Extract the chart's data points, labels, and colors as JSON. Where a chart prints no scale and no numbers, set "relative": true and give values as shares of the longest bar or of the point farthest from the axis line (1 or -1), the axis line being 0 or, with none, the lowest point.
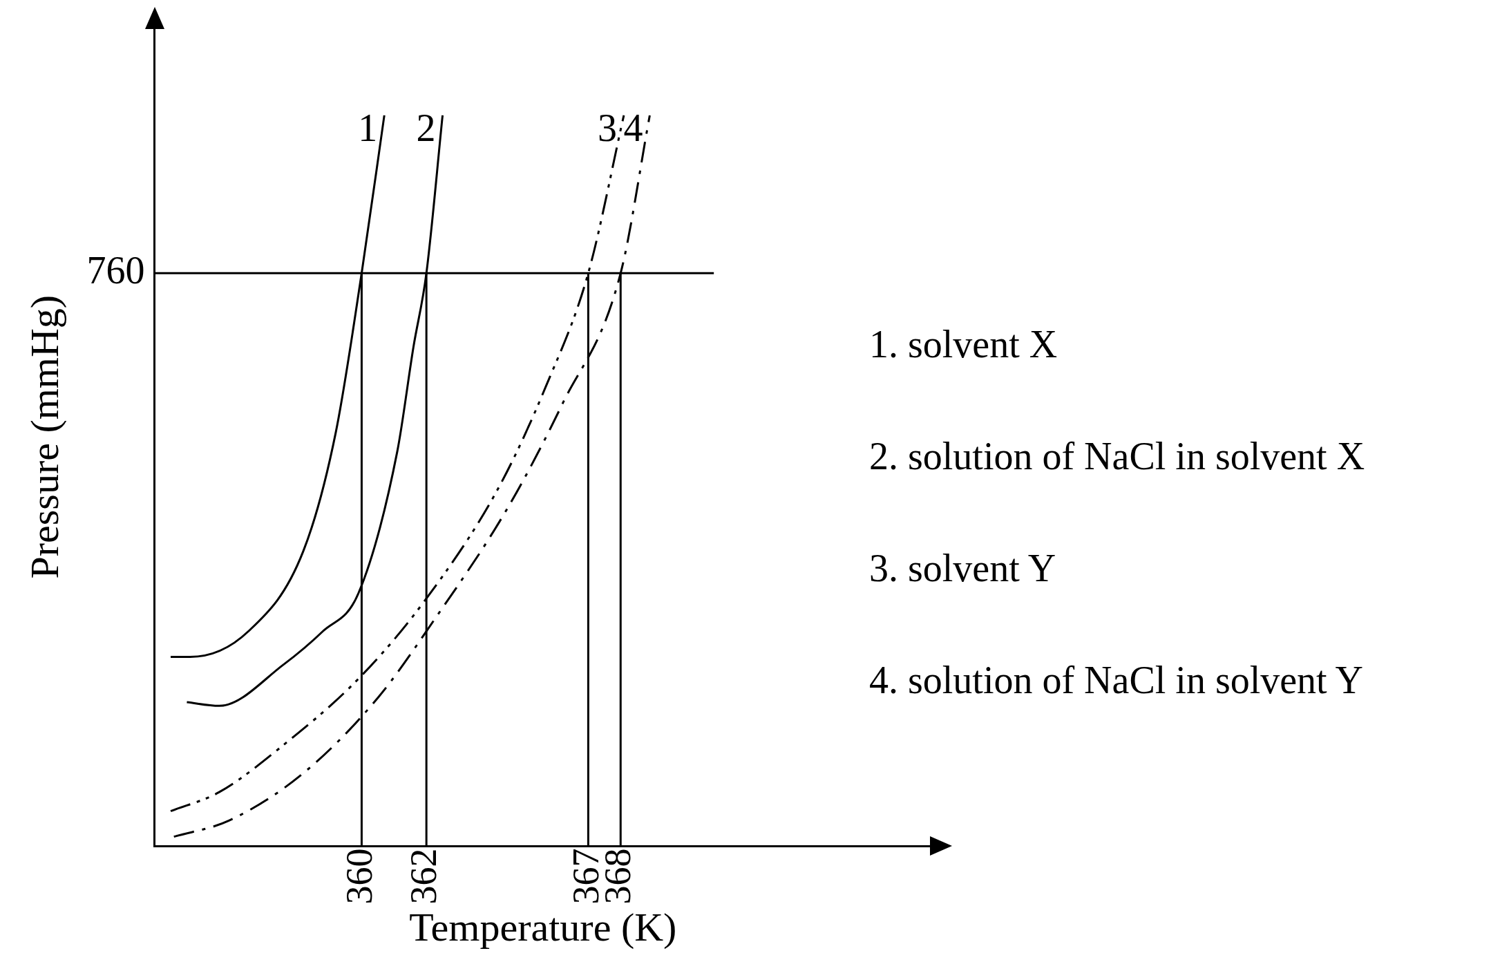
{
  "chart_data": {
    "type": "line",
    "relative": true,
    "xlabel": "Temperature (K)",
    "ylabel": "Pressure (mmHg)",
    "xlim": [
      353.6,
      377.6
    ],
    "xticks": [
      360,
      362,
      367,
      368
    ],
    "grid": false,
    "legend": false,
    "marker": "none",
    "series": [
      {
        "name": "1",
        "color": "#000000",
        "line_style": "solid",
        "x": [
          354.1,
          354.7,
          356.5,
          358.2,
          359.2,
          360,
          360.7
        ],
        "values": [
          0.259,
          0.259,
          0.294,
          0.404,
          0.566,
          0.784,
          1.0
        ]
      },
      {
        "name": "2",
        "color": "#000000",
        "line_style": "solid",
        "x": [
          354.6,
          355.6,
          357.6,
          358.8,
          359.9,
          361.1,
          361.6,
          362,
          362.5
        ],
        "values": [
          0.197,
          0.192,
          0.249,
          0.294,
          0.346,
          0.54,
          0.683,
          0.784,
          1.0
        ]
      },
      {
        "name": "3",
        "color": "#000000",
        "line_style": "dotted",
        "x": [
          354.1,
          355.6,
          357.6,
          359.9,
          361.9,
          364.2,
          365.7,
          367,
          368.1
        ],
        "values": [
          0.048,
          0.074,
          0.139,
          0.229,
          0.333,
          0.488,
          0.63,
          0.784,
          1.0
        ]
      },
      {
        "name": "4",
        "color": "#000000",
        "line_style": "dashed",
        "x": [
          354.2,
          355.9,
          358.2,
          360.5,
          362.2,
          364.5,
          366.2,
          368,
          368.9
        ],
        "values": [
          0.013,
          0.035,
          0.1,
          0.203,
          0.307,
          0.462,
          0.605,
          0.784,
          1.0
        ]
      }
    ],
    "ref_lines": [
      {
        "axis": "y",
        "value": 0.784
      },
      {
        "axis": "x",
        "value": 360
      },
      {
        "axis": "x",
        "value": 362
      },
      {
        "axis": "x",
        "value": 367
      },
      {
        "axis": "x",
        "value": 368
      }
    ],
    "annotations": [
      "760",
      "1. solvent X",
      "2. solution of NaCl in solvent X",
      "3. solvent Y",
      "4. solution of NaCl in solvent Y"
    ]
  }
}
